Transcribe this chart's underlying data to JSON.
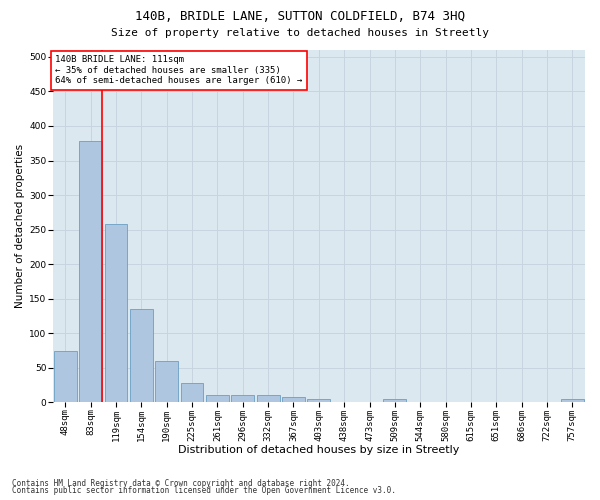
{
  "title": "140B, BRIDLE LANE, SUTTON COLDFIELD, B74 3HQ",
  "subtitle": "Size of property relative to detached houses in Streetly",
  "xlabel": "Distribution of detached houses by size in Streetly",
  "ylabel": "Number of detached properties",
  "bar_labels": [
    "48sqm",
    "83sqm",
    "119sqm",
    "154sqm",
    "190sqm",
    "225sqm",
    "261sqm",
    "296sqm",
    "332sqm",
    "367sqm",
    "403sqm",
    "438sqm",
    "473sqm",
    "509sqm",
    "544sqm",
    "580sqm",
    "615sqm",
    "651sqm",
    "686sqm",
    "722sqm",
    "757sqm"
  ],
  "bar_values": [
    74,
    378,
    258,
    135,
    60,
    28,
    11,
    11,
    11,
    8,
    5,
    0,
    0,
    5,
    0,
    0,
    0,
    0,
    0,
    0,
    5
  ],
  "bar_color": "#aec6df",
  "bar_edge_color": "#6a9ec5",
  "vline_color": "red",
  "ylim": [
    0,
    510
  ],
  "yticks": [
    0,
    50,
    100,
    150,
    200,
    250,
    300,
    350,
    400,
    450,
    500
  ],
  "annotation_title": "140B BRIDLE LANE: 111sqm",
  "annotation_line1": "← 35% of detached houses are smaller (335)",
  "annotation_line2": "64% of semi-detached houses are larger (610) →",
  "annotation_box_color": "white",
  "annotation_box_edge_color": "red",
  "grid_color": "#c8d4e0",
  "bg_color": "#dce8f0",
  "footer1": "Contains HM Land Registry data © Crown copyright and database right 2024.",
  "footer2": "Contains public sector information licensed under the Open Government Licence v3.0.",
  "title_fontsize": 9,
  "subtitle_fontsize": 8,
  "xlabel_fontsize": 8,
  "ylabel_fontsize": 7.5,
  "tick_fontsize": 6.5,
  "annotation_fontsize": 6.5,
  "footer_fontsize": 5.5
}
